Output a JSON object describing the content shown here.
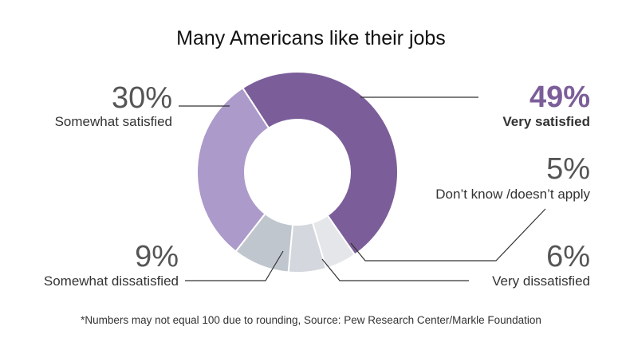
{
  "chart_data": {
    "type": "pie",
    "variant": "donut",
    "title": "Many Americans like their jobs",
    "slices": [
      {
        "label": "Very satisfied",
        "percent_text": "49%",
        "value": 49,
        "color": "#7b5e99",
        "emphasis": true
      },
      {
        "label": "Don’t know /doesn’t apply",
        "percent_text": "5%",
        "value": 5,
        "color": "#e4e6ea",
        "emphasis": false
      },
      {
        "label": "Very dissatisfied",
        "percent_text": "6%",
        "value": 6,
        "color": "#d4d7dd",
        "emphasis": false
      },
      {
        "label": "Somewhat dissatisfied",
        "percent_text": "9%",
        "value": 9,
        "color": "#c0c6cd",
        "emphasis": false
      },
      {
        "label": "Somewhat  satisfied",
        "percent_text": "30%",
        "value": 30,
        "color": "#ab9aca",
        "emphasis": false
      }
    ],
    "footnote": "*Numbers may not equal 100 due to rounding, Source: Pew Research Center/Markle Foundation"
  }
}
